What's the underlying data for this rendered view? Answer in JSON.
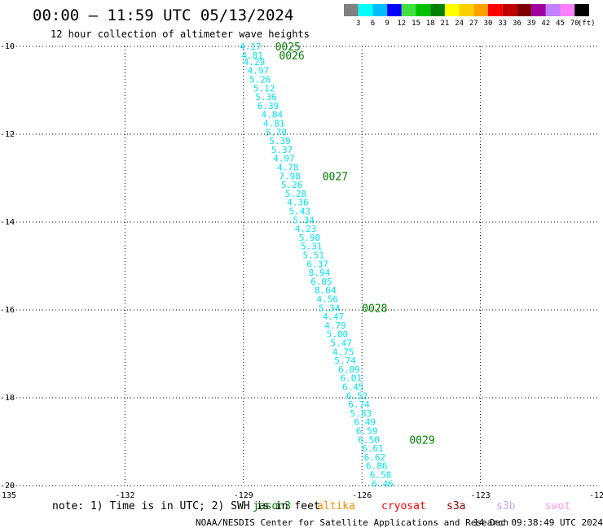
{
  "header": {
    "title": "00:00 – 11:59 UTC 05/13/2024",
    "subtitle": "12 hour collection of altimeter wave heights"
  },
  "legend_scale": {
    "colors": [
      "#808080",
      "#00ffff",
      "#00bfff",
      "#0000ff",
      "#40e040",
      "#00c000",
      "#008000",
      "#ffff00",
      "#ffd000",
      "#ffa000",
      "#ff0000",
      "#c00000",
      "#800000",
      "#a000a0",
      "#c080ff",
      "#ff80ff",
      "#000000"
    ],
    "labels": [
      "3",
      "6",
      "9",
      "12",
      "15",
      "18",
      "21",
      "24",
      "27",
      "30",
      "33",
      "36",
      "39",
      "42",
      "45",
      "70"
    ],
    "unit": "(ft)"
  },
  "note": "note: 1) Time is in UTC; 2) SWH is in feet",
  "satellites": [
    {
      "name": "jason3",
      "color": "#008000"
    },
    {
      "name": "altika",
      "color": "#ff8c00"
    },
    {
      "name": "cryosat",
      "color": "#ff0000"
    },
    {
      "name": "s3a",
      "color": "#8b0000"
    },
    {
      "name": "s3b",
      "color": "#c8a8ff"
    },
    {
      "name": "swot",
      "color": "#ff99ee"
    }
  ],
  "footer": {
    "credit": "NOAA/NESDIS Center for Satellite Applications and Research",
    "timestamp": "14 Dec 09:38:49 UTC 2024"
  },
  "chart_data": {
    "type": "scatter",
    "title": "00:00 – 11:59 UTC 05/13/2024",
    "subtitle": "12 hour collection of altimeter wave heights",
    "xlim": [
      -135,
      -120
    ],
    "ylim": [
      -20,
      -10
    ],
    "x_ticks": [
      -135,
      -132,
      -129,
      -126,
      -123,
      -120
    ],
    "x_tick_labels": [
      "-135",
      "-132",
      "-129",
      "-126",
      "-123",
      "-120"
    ],
    "y_ticks": [
      -10,
      -12,
      -14,
      -16,
      -18,
      -20
    ],
    "y_tick_labels": [
      "-10",
      "-12",
      "-14",
      "-16",
      "-18",
      "-20"
    ],
    "grid": true,
    "series": [
      {
        "name": "jason3",
        "color": "#00e5ee",
        "points": [
          {
            "x": -129.1,
            "y": -10.0,
            "v": "4.17"
          },
          {
            "x": -129.05,
            "y": -10.2,
            "v": "4.81"
          },
          {
            "x": -129.0,
            "y": -10.35,
            "v": "4.29"
          },
          {
            "x": -128.9,
            "y": -10.55,
            "v": "4.97"
          },
          {
            "x": -128.85,
            "y": -10.75,
            "v": "5.26"
          },
          {
            "x": -128.75,
            "y": -10.95,
            "v": "5.12"
          },
          {
            "x": -128.7,
            "y": -11.15,
            "v": "5.36"
          },
          {
            "x": -128.65,
            "y": -11.35,
            "v": "6.39"
          },
          {
            "x": -128.55,
            "y": -11.55,
            "v": "4.84"
          },
          {
            "x": -128.5,
            "y": -11.75,
            "v": "4.81"
          },
          {
            "x": -128.45,
            "y": -11.95,
            "v": "5.70"
          },
          {
            "x": -128.35,
            "y": -12.15,
            "v": "5.39"
          },
          {
            "x": -128.3,
            "y": -12.35,
            "v": "5.37"
          },
          {
            "x": -128.25,
            "y": -12.55,
            "v": "4.97"
          },
          {
            "x": -128.15,
            "y": -12.75,
            "v": "4.78"
          },
          {
            "x": -128.1,
            "y": -12.95,
            "v": "7.98"
          },
          {
            "x": -128.05,
            "y": -13.15,
            "v": "5.26"
          },
          {
            "x": -127.95,
            "y": -13.35,
            "v": "5.28"
          },
          {
            "x": -127.9,
            "y": -13.55,
            "v": "4.36"
          },
          {
            "x": -127.85,
            "y": -13.75,
            "v": "5.43"
          },
          {
            "x": -127.75,
            "y": -13.95,
            "v": "5.34"
          },
          {
            "x": -127.7,
            "y": -14.15,
            "v": "4.23"
          },
          {
            "x": -127.6,
            "y": -14.35,
            "v": "5.90"
          },
          {
            "x": -127.55,
            "y": -14.55,
            "v": "5.31"
          },
          {
            "x": -127.5,
            "y": -14.75,
            "v": "5.51"
          },
          {
            "x": -127.4,
            "y": -14.95,
            "v": "6.37"
          },
          {
            "x": -127.35,
            "y": -15.15,
            "v": "8.94"
          },
          {
            "x": -127.3,
            "y": -15.35,
            "v": "6.05"
          },
          {
            "x": -127.2,
            "y": -15.55,
            "v": "8.64"
          },
          {
            "x": -127.15,
            "y": -15.75,
            "v": "4.56"
          },
          {
            "x": -127.1,
            "y": -15.95,
            "v": "5.34"
          },
          {
            "x": -127.0,
            "y": -16.15,
            "v": "4.47"
          },
          {
            "x": -126.95,
            "y": -16.35,
            "v": "4.79"
          },
          {
            "x": -126.9,
            "y": -16.55,
            "v": "5.00"
          },
          {
            "x": -126.8,
            "y": -16.75,
            "v": "5.47"
          },
          {
            "x": -126.75,
            "y": -16.95,
            "v": "4.75"
          },
          {
            "x": -126.7,
            "y": -17.15,
            "v": "5.74"
          },
          {
            "x": -126.6,
            "y": -17.35,
            "v": "6.09"
          },
          {
            "x": -126.55,
            "y": -17.55,
            "v": "6.01"
          },
          {
            "x": -126.5,
            "y": -17.75,
            "v": "6.45"
          },
          {
            "x": -126.4,
            "y": -17.95,
            "v": "6.52"
          },
          {
            "x": -126.35,
            "y": -18.15,
            "v": "6.74"
          },
          {
            "x": -126.3,
            "y": -18.35,
            "v": "5.83"
          },
          {
            "x": -126.2,
            "y": -18.55,
            "v": "6.49"
          },
          {
            "x": -126.15,
            "y": -18.75,
            "v": "6.59"
          },
          {
            "x": -126.1,
            "y": -18.95,
            "v": "6.50"
          },
          {
            "x": -126.0,
            "y": -19.15,
            "v": "6.61"
          },
          {
            "x": -125.95,
            "y": -19.35,
            "v": "6.62"
          },
          {
            "x": -125.9,
            "y": -19.55,
            "v": "6.86"
          },
          {
            "x": -125.8,
            "y": -19.75,
            "v": "6.58"
          },
          {
            "x": -125.75,
            "y": -19.95,
            "v": "6.46"
          }
        ]
      }
    ],
    "time_markers": [
      {
        "x": -128.2,
        "y": -10.0,
        "label": "0025"
      },
      {
        "x": -128.1,
        "y": -10.2,
        "label": "0026"
      },
      {
        "x": -127.0,
        "y": -12.95,
        "label": "0027"
      },
      {
        "x": -126.0,
        "y": -15.95,
        "label": "0028"
      },
      {
        "x": -124.8,
        "y": -18.95,
        "label": "0029"
      }
    ],
    "time_marker_color": "#008000"
  }
}
